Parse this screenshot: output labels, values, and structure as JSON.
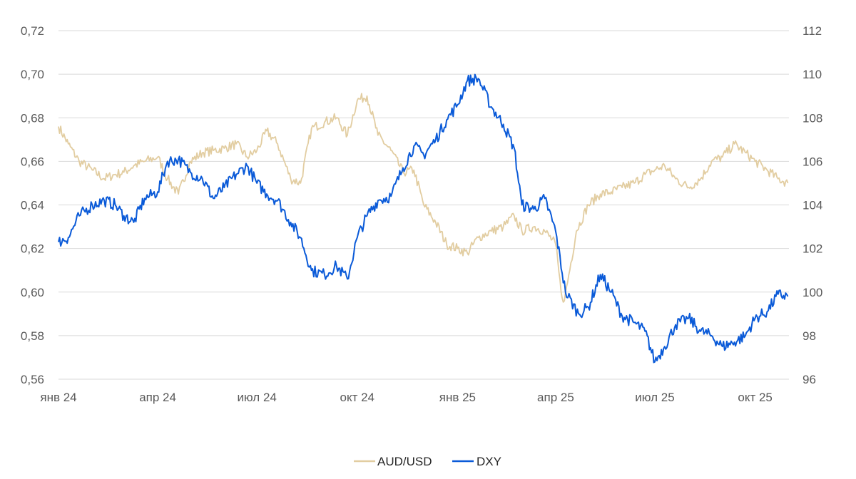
{
  "chart_data": {
    "type": "line",
    "title": "",
    "xlabel": "",
    "ylabel": "",
    "x_ticks": [
      {
        "label": "янв 24",
        "date": "2024-01-01"
      },
      {
        "label": "апр 24",
        "date": "2024-04-01"
      },
      {
        "label": "июл 24",
        "date": "2024-07-01"
      },
      {
        "label": "окт 24",
        "date": "2024-10-01"
      },
      {
        "label": "янв 25",
        "date": "2025-01-01"
      },
      {
        "label": "апр 25",
        "date": "2025-04-01"
      },
      {
        "label": "июл 25",
        "date": "2025-07-01"
      },
      {
        "label": "окт 25",
        "date": "2025-10-01"
      }
    ],
    "y_left": {
      "ticks": [
        "0,56",
        "0,58",
        "0,60",
        "0,62",
        "0,64",
        "0,66",
        "0,68",
        "0,70",
        "0,72"
      ],
      "ylim": [
        0.56,
        0.72
      ]
    },
    "y_right": {
      "ticks": [
        "96",
        "98",
        "100",
        "102",
        "104",
        "106",
        "108",
        "110",
        "112"
      ],
      "ylim": [
        96,
        112
      ]
    },
    "grid": true,
    "legend_position": "bottom",
    "series": [
      {
        "name": "AUD/USD",
        "axis": "left",
        "color": "#e2cda1",
        "x": [
          "2024-01-01",
          "2024-01-10",
          "2024-01-20",
          "2024-02-01",
          "2024-02-12",
          "2024-02-22",
          "2024-03-01",
          "2024-03-10",
          "2024-03-20",
          "2024-04-01",
          "2024-04-10",
          "2024-04-20",
          "2024-05-01",
          "2024-05-12",
          "2024-05-22",
          "2024-06-01",
          "2024-06-12",
          "2024-06-22",
          "2024-07-01",
          "2024-07-10",
          "2024-07-20",
          "2024-08-01",
          "2024-08-10",
          "2024-08-20",
          "2024-09-01",
          "2024-09-12",
          "2024-09-22",
          "2024-10-01",
          "2024-10-10",
          "2024-10-20",
          "2024-11-01",
          "2024-11-12",
          "2024-11-22",
          "2024-12-01",
          "2024-12-12",
          "2024-12-22",
          "2025-01-01",
          "2025-01-10",
          "2025-01-20",
          "2025-02-01",
          "2025-02-12",
          "2025-02-22",
          "2025-03-01",
          "2025-03-12",
          "2025-03-22",
          "2025-04-01",
          "2025-04-06",
          "2025-04-09",
          "2025-04-20",
          "2025-05-01",
          "2025-05-12",
          "2025-05-22",
          "2025-06-01",
          "2025-06-12",
          "2025-06-22",
          "2025-07-01",
          "2025-07-10",
          "2025-07-20",
          "2025-08-01",
          "2025-08-12",
          "2025-08-22",
          "2025-09-01",
          "2025-09-12",
          "2025-09-22",
          "2025-10-01",
          "2025-10-12",
          "2025-10-22",
          "2025-10-31"
        ],
        "values": [
          0.676,
          0.668,
          0.66,
          0.656,
          0.652,
          0.654,
          0.655,
          0.658,
          0.66,
          0.662,
          0.652,
          0.645,
          0.66,
          0.664,
          0.665,
          0.666,
          0.668,
          0.662,
          0.665,
          0.674,
          0.668,
          0.652,
          0.65,
          0.675,
          0.678,
          0.68,
          0.672,
          0.688,
          0.69,
          0.672,
          0.665,
          0.655,
          0.656,
          0.64,
          0.632,
          0.622,
          0.62,
          0.618,
          0.625,
          0.628,
          0.63,
          0.635,
          0.628,
          0.63,
          0.628,
          0.622,
          0.6,
          0.596,
          0.628,
          0.64,
          0.645,
          0.646,
          0.648,
          0.65,
          0.654,
          0.656,
          0.658,
          0.652,
          0.648,
          0.652,
          0.66,
          0.662,
          0.668,
          0.664,
          0.66,
          0.656,
          0.652,
          0.65
        ]
      },
      {
        "name": "DXY",
        "axis": "right",
        "color": "#0a5ad8",
        "x": [
          "2024-01-01",
          "2024-01-10",
          "2024-01-20",
          "2024-02-01",
          "2024-02-12",
          "2024-02-22",
          "2024-03-01",
          "2024-03-10",
          "2024-03-20",
          "2024-04-01",
          "2024-04-10",
          "2024-04-20",
          "2024-05-01",
          "2024-05-12",
          "2024-05-22",
          "2024-06-01",
          "2024-06-12",
          "2024-06-22",
          "2024-07-01",
          "2024-07-10",
          "2024-07-20",
          "2024-08-01",
          "2024-08-10",
          "2024-08-20",
          "2024-09-01",
          "2024-09-12",
          "2024-09-22",
          "2024-10-01",
          "2024-10-10",
          "2024-10-20",
          "2024-11-01",
          "2024-11-12",
          "2024-11-22",
          "2024-12-01",
          "2024-12-12",
          "2024-12-22",
          "2025-01-01",
          "2025-01-10",
          "2025-01-20",
          "2025-02-01",
          "2025-02-12",
          "2025-02-22",
          "2025-03-01",
          "2025-03-12",
          "2025-03-22",
          "2025-04-01",
          "2025-04-10",
          "2025-04-22",
          "2025-05-01",
          "2025-05-12",
          "2025-05-22",
          "2025-06-01",
          "2025-06-12",
          "2025-06-22",
          "2025-07-01",
          "2025-07-10",
          "2025-07-20",
          "2025-08-01",
          "2025-08-12",
          "2025-08-22",
          "2025-09-01",
          "2025-09-12",
          "2025-09-22",
          "2025-10-01",
          "2025-10-12",
          "2025-10-22",
          "2025-10-31"
        ],
        "values": [
          102.3,
          102.5,
          103.5,
          104.0,
          104.2,
          104.0,
          103.5,
          103.2,
          104.3,
          104.6,
          106.0,
          106.1,
          105.5,
          105.2,
          104.3,
          104.8,
          105.4,
          105.8,
          105.0,
          104.5,
          104.2,
          103.2,
          102.5,
          101.0,
          100.8,
          101.2,
          100.6,
          102.5,
          103.5,
          104.2,
          104.4,
          105.7,
          106.7,
          106.3,
          107.0,
          107.9,
          108.6,
          109.7,
          109.8,
          108.5,
          107.7,
          106.6,
          104.0,
          103.8,
          104.3,
          102.8,
          100.0,
          99.0,
          99.3,
          100.8,
          100.0,
          98.9,
          98.6,
          98.2,
          96.8,
          97.5,
          98.5,
          98.8,
          98.2,
          98.0,
          97.5,
          97.7,
          98.0,
          98.8,
          99.1,
          99.9,
          99.8
        ]
      }
    ]
  }
}
